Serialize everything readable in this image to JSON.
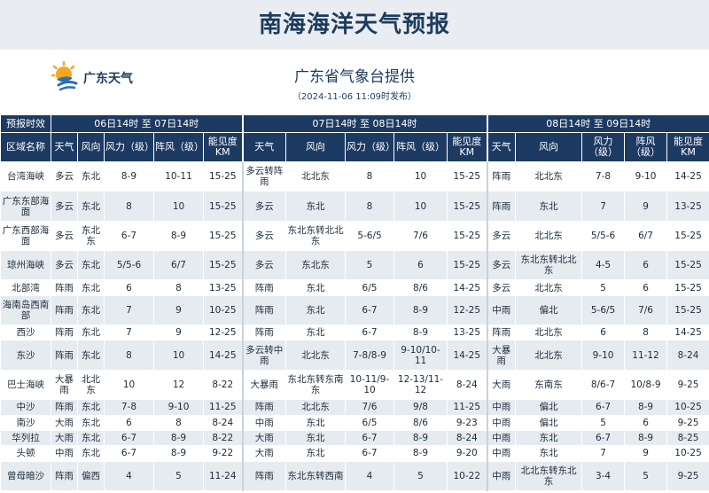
{
  "title": "南海海洋天气预报",
  "logo": {
    "text": "广东天气"
  },
  "provider": "广东省气象台提供",
  "publish_time": "（2024-11-06 11:09时发布）",
  "table": {
    "header_top": [
      "预报时效",
      "06日14时 至 07日14时",
      "07日14时 至 08日14时",
      "08日14时 至 09日14时"
    ],
    "header_cols": [
      "区域名称",
      "天气",
      "风向",
      "风力（级）",
      "阵风（级）",
      "能见度KM",
      "天气",
      "风向",
      "风力（级）",
      "阵风（级）",
      "能见度KM",
      "天气",
      "风向",
      "风力（级）",
      "阵风（级）",
      "能见度KM"
    ],
    "rows": [
      [
        "台湾海峡",
        "多云",
        "东北",
        "8-9",
        "10-11",
        "15-25",
        "多云转阵雨",
        "北北东",
        "8",
        "10",
        "15-25",
        "阵雨",
        "北北东",
        "7-8",
        "9-10",
        "14-25"
      ],
      [
        "广东东部海面",
        "多云",
        "东北",
        "8",
        "10",
        "15-25",
        "多云",
        "东北",
        "8",
        "10",
        "15-25",
        "阵雨",
        "东北",
        "7",
        "9",
        "13-25"
      ],
      [
        "广东西部海面",
        "多云",
        "东北东",
        "6-7",
        "8-9",
        "15-25",
        "多云",
        "东北东转北北东",
        "5-6/5",
        "7/6",
        "15-25",
        "多云",
        "北北东",
        "5/5-6",
        "6/7",
        "15-25"
      ],
      [
        "琼州海峡",
        "多云",
        "东北",
        "5/5-6",
        "6/7",
        "15-25",
        "多云",
        "东北东",
        "5",
        "6",
        "15-25",
        "多云",
        "东北东转北北东",
        "4-5",
        "6",
        "15-25"
      ],
      [
        "北部湾",
        "阵雨",
        "东北",
        "6",
        "8",
        "13-25",
        "阵雨",
        "东北",
        "6/5",
        "8/6",
        "14-25",
        "多云",
        "北北东",
        "5",
        "6",
        "15-25"
      ],
      [
        "海南岛西南部",
        "阵雨",
        "东北",
        "7",
        "9",
        "10-25",
        "阵雨",
        "东北",
        "6-7",
        "8-9",
        "12-25",
        "中雨",
        "偏北",
        "5-6/5",
        "7/6",
        "15-25"
      ],
      [
        "西沙",
        "阵雨",
        "东北",
        "7",
        "9",
        "12-25",
        "阵雨",
        "东北",
        "6-7",
        "8-9",
        "13-25",
        "阵雨",
        "北北东",
        "6",
        "8",
        "14-25"
      ],
      [
        "东沙",
        "阵雨",
        "东北",
        "8",
        "10",
        "14-25",
        "多云转中雨",
        "北北东",
        "7-8/8-9",
        "9-10/10-11",
        "14-25",
        "大暴雨",
        "北北东",
        "9-10",
        "11-12",
        "8-24"
      ],
      [
        "巴士海峡",
        "大暴雨",
        "北北东",
        "10",
        "12",
        "8-22",
        "大暴雨",
        "东北东转东南东",
        "10-11/9-10",
        "12-13/11-12",
        "8-24",
        "大雨",
        "东南东",
        "8/6-7",
        "10/8-9",
        "9-25"
      ],
      [
        "中沙",
        "阵雨",
        "东北",
        "7-8",
        "9-10",
        "11-25",
        "阵雨",
        "北北东",
        "7/6",
        "9/8",
        "11-25",
        "中雨",
        "偏北",
        "6-7",
        "8-9",
        "10-25"
      ],
      [
        "南沙",
        "大雨",
        "东北",
        "6",
        "8",
        "8-24",
        "中雨",
        "东北",
        "6/5",
        "8/6",
        "9-23",
        "中雨",
        "偏北",
        "5",
        "6",
        "9-25"
      ],
      [
        "华列拉",
        "大雨",
        "东北",
        "6-7",
        "8-9",
        "8-22",
        "大雨",
        "东北",
        "6-7",
        "8-9",
        "8-24",
        "中雨",
        "东北",
        "6-7",
        "8-9",
        "8-25"
      ],
      [
        "头顿",
        "中雨",
        "东北",
        "6-7",
        "8-9",
        "9-22",
        "大雨",
        "东北",
        "6-7",
        "8-9",
        "9-20",
        "中雨",
        "东北",
        "7",
        "9",
        "10-25"
      ],
      [
        "曾母暗沙",
        "阵雨",
        "偏西",
        "4",
        "5",
        "11-24",
        "阵雨",
        "东北东转西南",
        "4",
        "5",
        "10-22",
        "中雨",
        "北北东转东北东",
        "3-4",
        "5",
        "9-25"
      ]
    ]
  },
  "colors": {
    "header_bg": "#1d3a63",
    "title_bg": "#e9edf1",
    "stripe": "#e6ebf0",
    "logo_orange": "#f5a623",
    "logo_blue": "#2a6fb8"
  }
}
